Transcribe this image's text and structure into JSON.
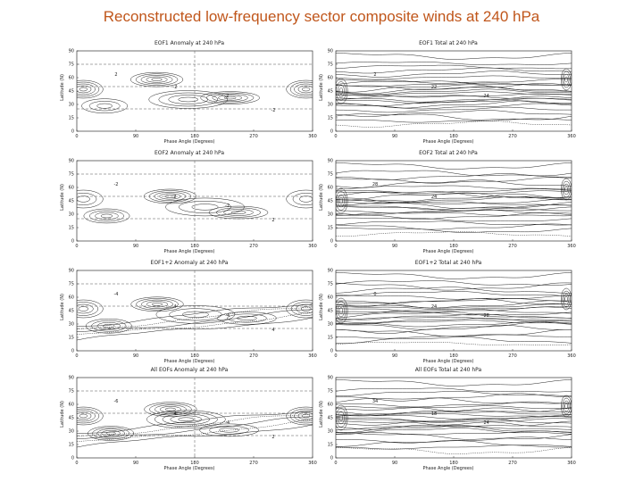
{
  "slide": {
    "title": "Reconstructed low-frequency sector composite winds at 240 hPa"
  },
  "chart_data": [
    {
      "id": "p1",
      "type": "contour",
      "kind": "anomaly",
      "title": "EOF1 Anomaly at 240 hPa",
      "xlabel": "Phase Angle (Degrees)",
      "ylabel": "Latitude (N)",
      "xlim": [
        0,
        360
      ],
      "ylim": [
        0,
        90
      ],
      "xticks": [
        "0",
        "90",
        "180",
        "270",
        "360"
      ],
      "yticks": [
        "0",
        "15",
        "30",
        "45",
        "60",
        "75",
        "90"
      ],
      "contour_labels": [
        "2",
        "-2",
        "2",
        "-2"
      ]
    },
    {
      "id": "p2",
      "type": "contour",
      "kind": "total",
      "title": "EOF1 Total at 240 hPa",
      "xlabel": "Phase Angle (Degrees)",
      "ylabel": "Latitude (N)",
      "xlim": [
        0,
        360
      ],
      "ylim": [
        0,
        90
      ],
      "xticks": [
        "0",
        "90",
        "180",
        "270",
        "360"
      ],
      "yticks": [
        "0",
        "15",
        "30",
        "45",
        "60",
        "75",
        "90"
      ],
      "contour_labels": [
        "2",
        "22",
        "24"
      ]
    },
    {
      "id": "p3",
      "type": "contour",
      "kind": "anomaly",
      "title": "EOF2 Anomaly at 240 hPa",
      "xlabel": "Phase Angle (Degrees)",
      "ylabel": "Latitude (N)",
      "xlim": [
        0,
        360
      ],
      "ylim": [
        0,
        90
      ],
      "xticks": [
        "0",
        "90",
        "180",
        "270",
        "360"
      ],
      "yticks": [
        "0",
        "15",
        "30",
        "45",
        "60",
        "75",
        "90"
      ],
      "contour_labels": [
        "-2",
        "2",
        "-2",
        "2"
      ]
    },
    {
      "id": "p4",
      "type": "contour",
      "kind": "total",
      "title": "EOF2 Total at 240 hPa",
      "xlabel": "Phase Angle (Degrees)",
      "ylabel": "Latitude (N)",
      "xlim": [
        0,
        360
      ],
      "ylim": [
        0,
        90
      ],
      "xticks": [
        "0",
        "90",
        "180",
        "270",
        "360"
      ],
      "yticks": [
        "0",
        "15",
        "30",
        "45",
        "60",
        "75",
        "90"
      ],
      "contour_labels": [
        "28",
        "24"
      ]
    },
    {
      "id": "p5",
      "type": "contour",
      "kind": "anomaly",
      "title": "EOF1+2 Anomaly at 240 hPa",
      "xlabel": "Phase Angle (Degrees)",
      "ylabel": "Latitude (N)",
      "xlim": [
        0,
        360
      ],
      "ylim": [
        0,
        90
      ],
      "xticks": [
        "0",
        "90",
        "180",
        "270",
        "360"
      ],
      "yticks": [
        "0",
        "15",
        "30",
        "45",
        "60",
        "75",
        "90"
      ],
      "contour_labels": [
        "-4",
        "4",
        "-4",
        "4"
      ]
    },
    {
      "id": "p6",
      "type": "contour",
      "kind": "total",
      "title": "EOF1+2 Total at 240 hPa",
      "xlabel": "Phase Angle (Degrees)",
      "ylabel": "Latitude (N)",
      "xlim": [
        0,
        360
      ],
      "ylim": [
        0,
        90
      ],
      "xticks": [
        "0",
        "90",
        "180",
        "270",
        "360"
      ],
      "yticks": [
        "0",
        "15",
        "30",
        "45",
        "60",
        "75",
        "90"
      ],
      "contour_labels": [
        "0",
        "24",
        "28"
      ]
    },
    {
      "id": "p7",
      "type": "contour",
      "kind": "anomaly",
      "title": "All EOFs Anomaly at 240 hPa",
      "xlabel": "Phase Angle (Degrees)",
      "ylabel": "Latitude (N)",
      "xlim": [
        0,
        360
      ],
      "ylim": [
        0,
        90
      ],
      "xticks": [
        "0",
        "90",
        "180",
        "270",
        "360"
      ],
      "yticks": [
        "0",
        "15",
        "30",
        "45",
        "60",
        "75",
        "90"
      ],
      "contour_labels": [
        "-6",
        "4",
        "-4",
        "2"
      ]
    },
    {
      "id": "p8",
      "type": "contour",
      "kind": "total",
      "title": "All EOFs Total at 240 hPa",
      "xlabel": "Phase Angle (Degrees)",
      "ylabel": "Latitude (N)",
      "xlim": [
        0,
        360
      ],
      "ylim": [
        0,
        90
      ],
      "xticks": [
        "0",
        "90",
        "180",
        "270",
        "360"
      ],
      "yticks": [
        "0",
        "15",
        "30",
        "45",
        "60",
        "75",
        "90"
      ],
      "contour_labels": [
        "34",
        "18",
        "24"
      ]
    }
  ]
}
